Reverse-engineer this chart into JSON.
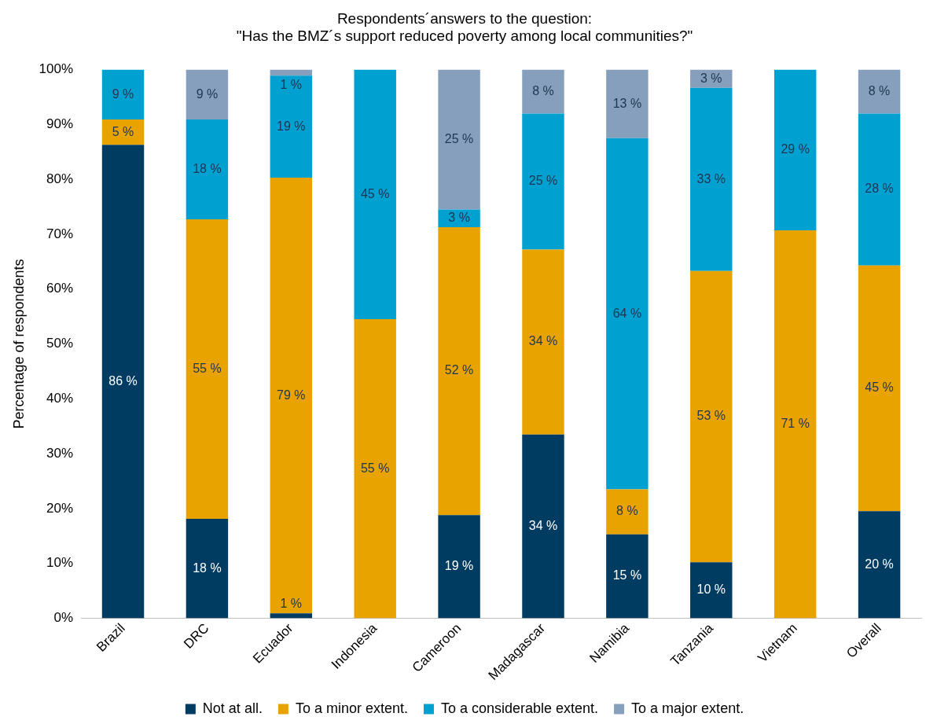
{
  "chart_data": {
    "type": "bar",
    "stacked": true,
    "title": "Respondents´answers to the question:\n\"Has the BMZ´s support reduced poverty among local communities?\"",
    "ylabel": "Percentage of respondents",
    "categories": [
      "Brazil",
      "DRC",
      "Ecuador",
      "Indonesia",
      "Cameroon",
      "Madagascar",
      "Namibia",
      "Tanzania",
      "Vietnam",
      "Overall"
    ],
    "ylim": [
      0,
      100
    ],
    "yticks": [
      {
        "value": 0,
        "label": "0%"
      },
      {
        "value": 10,
        "label": "10%"
      },
      {
        "value": 20,
        "label": "20%"
      },
      {
        "value": 30,
        "label": "30%"
      },
      {
        "value": 40,
        "label": "40%"
      },
      {
        "value": 50,
        "label": "50%"
      },
      {
        "value": 60,
        "label": "60%"
      },
      {
        "value": 70,
        "label": "70%"
      },
      {
        "value": 80,
        "label": "80%"
      },
      {
        "value": 90,
        "label": "90%"
      },
      {
        "value": 100,
        "label": "100%"
      }
    ],
    "grid": false,
    "legend": "bottom",
    "series": [
      {
        "name": "Not at all.",
        "color": "#003b62",
        "values": [
          86.3,
          18.1,
          0.9,
          null,
          18.8,
          33.5,
          15.3,
          10.2,
          null,
          19.5
        ],
        "value_labels": [
          "86 %",
          "18 %",
          "1 %",
          null,
          "19 %",
          "34 %",
          "15 %",
          "10 %",
          null,
          "20 %"
        ]
      },
      {
        "name": "To a minor extent.",
        "color": "#e8a300",
        "values": [
          4.6,
          54.6,
          79.4,
          54.5,
          52.5,
          33.7,
          8.2,
          53.1,
          70.7,
          44.8
        ],
        "value_labels": [
          "5 %",
          "55 %",
          "79 %",
          "55 %",
          "52 %",
          "34 %",
          "8 %",
          "53 %",
          "71 %",
          "45 %"
        ]
      },
      {
        "name": "To a considerable extent.",
        "color": "#00a0d1",
        "values": [
          9.1,
          18.2,
          18.6,
          45.5,
          3.2,
          24.8,
          64.0,
          33.4,
          29.3,
          27.7
        ],
        "value_labels": [
          "9 %",
          "18 %",
          "19 %",
          "45 %",
          "3 %",
          "25 %",
          "64 %",
          "33 %",
          "29 %",
          "28 %"
        ]
      },
      {
        "name": "To a major extent.",
        "color": "#869fbd",
        "values": [
          null,
          9.1,
          1.1,
          null,
          25.5,
          8.0,
          12.5,
          3.3,
          null,
          8.0
        ],
        "value_labels": [
          null,
          "9 %",
          "1 %",
          null,
          "25 %",
          "8 %",
          "13 %",
          "3 %",
          null,
          "8 %"
        ]
      }
    ]
  }
}
